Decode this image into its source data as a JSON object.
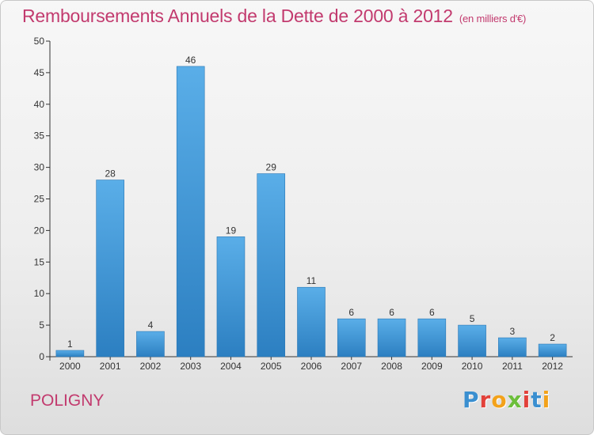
{
  "header": {
    "title": "Remboursements Annuels de la Dette de 2000 à 2012",
    "subtitle": "(en milliers d'€)"
  },
  "footer": {
    "commune": "POLIGNY",
    "logo_letters": [
      "P",
      "r",
      "o",
      "x",
      "i",
      "t",
      "i"
    ]
  },
  "colors": {
    "title": "#c23a6e",
    "bar_top": "#5aaee8",
    "bar_bottom": "#2c7fc1",
    "axis": "#333333"
  },
  "chart_data": {
    "type": "bar",
    "categories": [
      "2000",
      "2001",
      "2002",
      "2003",
      "2004",
      "2005",
      "2006",
      "2007",
      "2008",
      "2009",
      "2010",
      "2011",
      "2012"
    ],
    "values": [
      1,
      28,
      4,
      46,
      19,
      29,
      11,
      6,
      6,
      6,
      5,
      3,
      2
    ],
    "data_labels": [
      "1",
      "28",
      "4",
      "46",
      "19",
      "29",
      "11",
      "6",
      "6",
      "6",
      "5",
      "3",
      "2"
    ],
    "yticks": [
      "0",
      "5",
      "10",
      "15",
      "20",
      "25",
      "30",
      "35",
      "40",
      "45",
      "50"
    ],
    "ylim": [
      0,
      50
    ],
    "grid": false
  }
}
